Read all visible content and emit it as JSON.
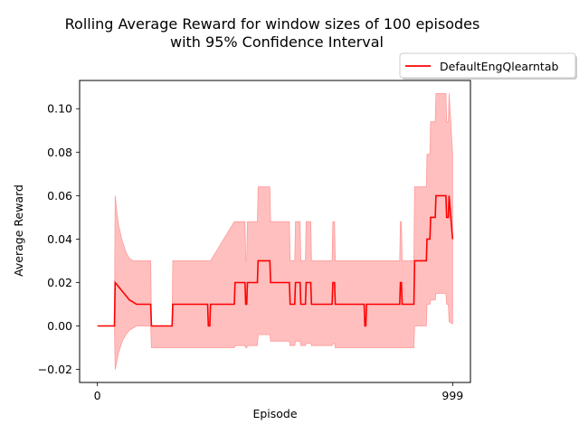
{
  "chart_data": {
    "type": "line",
    "title_lines": [
      "Rolling Average Reward for window sizes of 100 episodes",
      "with 95% Confidence Interval"
    ],
    "xlabel": "Episode",
    "ylabel": "Average Reward",
    "xlim": [
      -50,
      1049
    ],
    "ylim": [
      -0.026,
      0.113
    ],
    "xticks": [
      {
        "value": 0,
        "label": "0"
      },
      {
        "value": 999,
        "label": "999"
      }
    ],
    "yticks": [
      {
        "value": -0.02,
        "label": "−0.02"
      },
      {
        "value": 0.0,
        "label": "0.00"
      },
      {
        "value": 0.02,
        "label": "0.02"
      },
      {
        "value": 0.04,
        "label": "0.04"
      },
      {
        "value": 0.06,
        "label": "0.06"
      },
      {
        "value": 0.08,
        "label": "0.08"
      },
      {
        "value": 0.1,
        "label": "0.10"
      }
    ],
    "grid": false,
    "legend": {
      "placement": "top-right",
      "entries": [
        "DefaultEngQlearntab"
      ]
    },
    "colors": {
      "line": "#ff0000",
      "band": "#ffbfbf",
      "band_edge": "#ff9999"
    },
    "series": [
      {
        "name": "DefaultEngQlearntab",
        "x": [
          0,
          48,
          50,
          55,
          60,
          70,
          80,
          90,
          100,
          110,
          120,
          150,
          152,
          210,
          212,
          310,
          312,
          316,
          318,
          385,
          387,
          415,
          417,
          420,
          422,
          450,
          452,
          485,
          487,
          540,
          542,
          555,
          557,
          570,
          572,
          585,
          587,
          600,
          602,
          660,
          662,
          667,
          669,
          750,
          752,
          755,
          757,
          850,
          852,
          855,
          857,
          890,
          892,
          925,
          927,
          935,
          937,
          950,
          952,
          980,
          982,
          987,
          989,
          999
        ],
        "y": [
          0.0,
          0.0,
          0.02,
          0.019,
          0.018,
          0.016,
          0.014,
          0.012,
          0.011,
          0.01,
          0.01,
          0.01,
          0.0,
          0.0,
          0.01,
          0.01,
          0.0,
          0.0,
          0.01,
          0.01,
          0.02,
          0.02,
          0.01,
          0.01,
          0.02,
          0.02,
          0.03,
          0.03,
          0.02,
          0.02,
          0.01,
          0.01,
          0.02,
          0.02,
          0.01,
          0.01,
          0.02,
          0.02,
          0.01,
          0.01,
          0.02,
          0.02,
          0.01,
          0.01,
          0.0,
          0.0,
          0.01,
          0.01,
          0.02,
          0.02,
          0.01,
          0.01,
          0.03,
          0.03,
          0.04,
          0.04,
          0.05,
          0.05,
          0.06,
          0.06,
          0.05,
          0.05,
          0.06,
          0.04
        ],
        "lower": [
          0.0,
          0.0,
          -0.02,
          -0.016,
          -0.012,
          -0.007,
          -0.004,
          -0.002,
          -0.001,
          0.0,
          0.0,
          0.0,
          -0.01,
          -0.01,
          -0.01,
          -0.01,
          -0.01,
          -0.01,
          -0.01,
          -0.01,
          -0.009,
          -0.009,
          -0.01,
          -0.01,
          -0.009,
          -0.009,
          -0.004,
          -0.004,
          -0.007,
          -0.007,
          -0.009,
          -0.009,
          -0.007,
          -0.007,
          -0.009,
          -0.009,
          -0.008,
          -0.008,
          -0.009,
          -0.009,
          -0.008,
          -0.008,
          -0.01,
          -0.01,
          -0.01,
          -0.01,
          -0.01,
          -0.01,
          -0.01,
          -0.01,
          -0.01,
          -0.01,
          0.0,
          0.0,
          0.01,
          0.01,
          0.012,
          0.012,
          0.015,
          0.015,
          0.01,
          0.01,
          0.002,
          0.001
        ],
        "upper": [
          0.0,
          0.0,
          0.06,
          0.052,
          0.046,
          0.039,
          0.034,
          0.031,
          0.03,
          0.03,
          0.03,
          0.03,
          0.0,
          0.0,
          0.03,
          0.03,
          0.03,
          0.03,
          0.03,
          0.048,
          0.048,
          0.048,
          0.03,
          0.03,
          0.048,
          0.048,
          0.064,
          0.064,
          0.048,
          0.048,
          0.03,
          0.03,
          0.048,
          0.048,
          0.03,
          0.03,
          0.048,
          0.048,
          0.03,
          0.03,
          0.048,
          0.048,
          0.03,
          0.03,
          0.03,
          0.03,
          0.03,
          0.03,
          0.048,
          0.048,
          0.03,
          0.03,
          0.064,
          0.064,
          0.079,
          0.079,
          0.094,
          0.094,
          0.107,
          0.107,
          0.094,
          0.094,
          0.107,
          0.079
        ]
      }
    ]
  }
}
